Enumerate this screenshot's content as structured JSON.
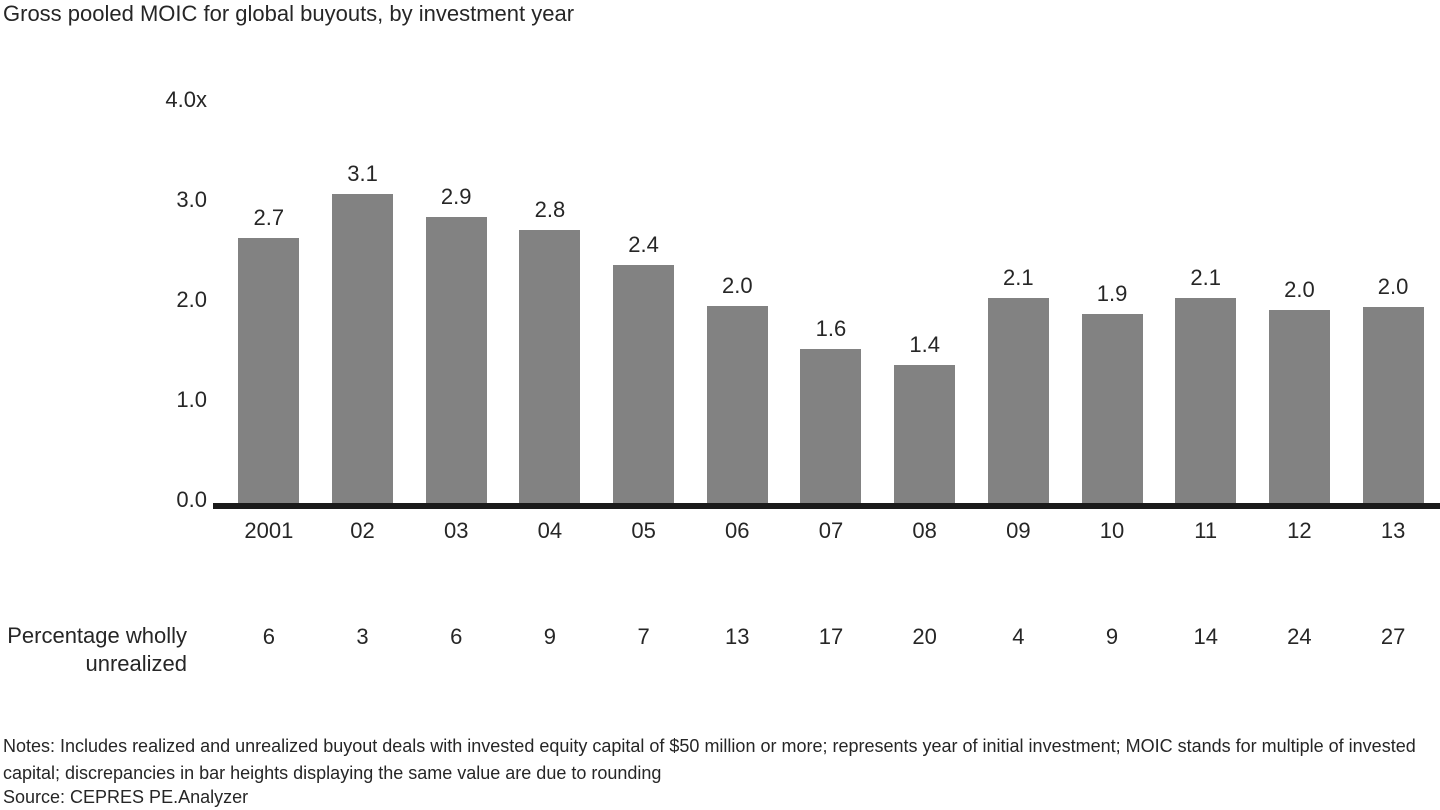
{
  "chart_data": {
    "type": "bar",
    "title": "Gross pooled MOIC for global buyouts, by investment year",
    "y_axis": {
      "unit_suffix": "x",
      "ylim": [
        0.0,
        4.0
      ],
      "ticks": [
        {
          "label": "4.0x",
          "value": 4.0
        },
        {
          "label": "3.0",
          "value": 3.0
        },
        {
          "label": "2.0",
          "value": 2.0
        },
        {
          "label": "1.0",
          "value": 1.0
        },
        {
          "label": "0.0",
          "value": 0.0
        }
      ]
    },
    "categories": [
      "2001",
      "02",
      "03",
      "04",
      "05",
      "06",
      "07",
      "08",
      "09",
      "10",
      "11",
      "12",
      "13"
    ],
    "series": [
      {
        "name": "Gross pooled MOIC",
        "values": [
          2.7,
          3.1,
          2.9,
          2.8,
          2.4,
          2.0,
          1.6,
          1.4,
          2.1,
          1.9,
          2.1,
          2.0,
          2.0
        ],
        "value_labels": [
          "2.7",
          "3.1",
          "2.9",
          "2.8",
          "2.4",
          "2.0",
          "1.6",
          "1.4",
          "2.1",
          "1.9",
          "2.1",
          "2.0",
          "2.0"
        ],
        "drawn_heights": [
          2.65,
          3.09,
          2.86,
          2.73,
          2.38,
          1.97,
          1.54,
          1.38,
          2.05,
          1.89,
          2.05,
          1.93,
          1.96
        ]
      }
    ],
    "secondary_row": {
      "label": "Percentage wholly unrealized",
      "values": [
        "6",
        "3",
        "6",
        "9",
        "7",
        "13",
        "17",
        "20",
        "4",
        "9",
        "14",
        "24",
        "27"
      ]
    },
    "notes": "Notes: Includes realized and unrealized buyout deals with invested equity capital of $50 million or more; represents year of initial investment; MOIC stands for multiple of invested capital; discrepancies in bar heights displaying the same value are due to rounding",
    "source": "Source: CEPRES PE.Analyzer",
    "grid": false,
    "legend": "none",
    "colors": {
      "bar": "#828282",
      "axis": "#1a1a1a",
      "text": "#262626",
      "background": "#ffffff"
    }
  }
}
